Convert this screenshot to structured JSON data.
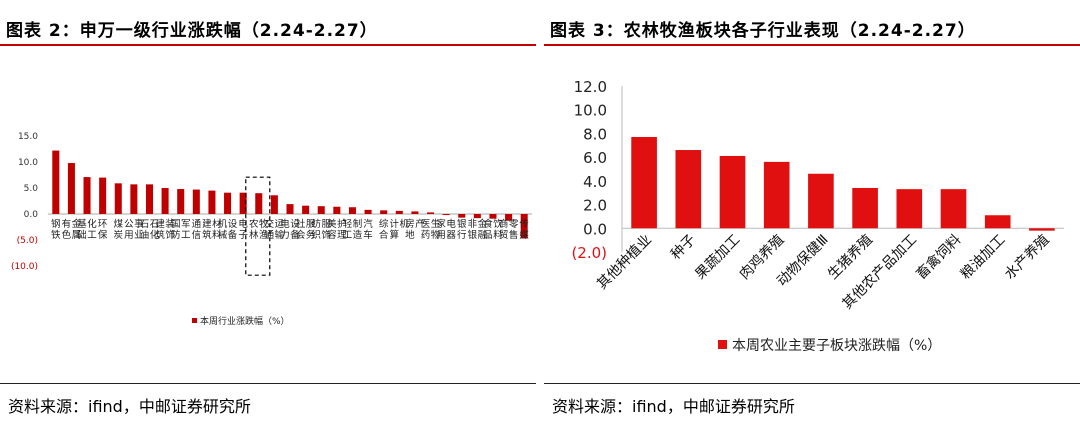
{
  "left": {
    "title": "图表 2：申万一级行业涨跌幅（2.24-2.27）",
    "source": "资料来源：ifind，中邮证券研究所"
  },
  "right": {
    "title": "图表 3：农林牧渔板块各子行业表现（2.24-2.27）",
    "source": "资料来源：ifind，中邮证券研究所"
  },
  "chart_data": [
    {
      "type": "bar",
      "categories": [
        "钢铁",
        "有色金属",
        "基础化工",
        "环保",
        "煤炭",
        "公用事业",
        "石油石化",
        "建筑装饰",
        "国防军工",
        "通信",
        "建筑材料",
        "机械设备",
        "电子",
        "农林牧渔",
        "交通运输",
        "电力设备",
        "社会服务",
        "纺织服饰",
        "美容护理",
        "轻工制造",
        "汽车",
        "综合",
        "计算机",
        "房地产",
        "医药生物",
        "家用电器",
        "银行",
        "非银金融",
        "食品饮料",
        "商贸零售",
        "传媒"
      ],
      "values": [
        12.2,
        9.8,
        7.1,
        7.0,
        5.9,
        5.7,
        5.7,
        5.0,
        4.8,
        4.7,
        4.5,
        4.1,
        4.1,
        4.0,
        3.6,
        1.9,
        1.6,
        1.5,
        1.4,
        1.3,
        0.8,
        0.7,
        0.6,
        0.5,
        0.3,
        -0.2,
        -0.7,
        -0.8,
        -0.9,
        -1.3,
        -4.7
      ],
      "yticks": [
        "15.0",
        "10.0",
        "5.0",
        "0.0",
        "(5.0)",
        "(10.0)"
      ],
      "ylim": [
        -10,
        15
      ],
      "highlight": "农林牧渔",
      "legend": "本周行业涨跌幅（%）",
      "color": "#c00000"
    },
    {
      "type": "bar",
      "categories": [
        "其他种植业",
        "种子",
        "果蔬加工",
        "肉鸡养殖",
        "动物保健Ⅲ",
        "生猪养殖",
        "其他农产品加工",
        "畜禽饲料",
        "粮油加工",
        "水产养殖"
      ],
      "values": [
        7.7,
        6.6,
        6.1,
        5.6,
        4.6,
        3.4,
        3.3,
        3.3,
        1.1,
        -0.2
      ],
      "yticks": [
        "12.0",
        "10.0",
        "8.0",
        "6.0",
        "4.0",
        "2.0",
        "0.0",
        "(2.0)"
      ],
      "ylim": [
        -2,
        12
      ],
      "legend": "本周农业主要子板块涨跌幅（%）",
      "color": "#e01010"
    }
  ]
}
